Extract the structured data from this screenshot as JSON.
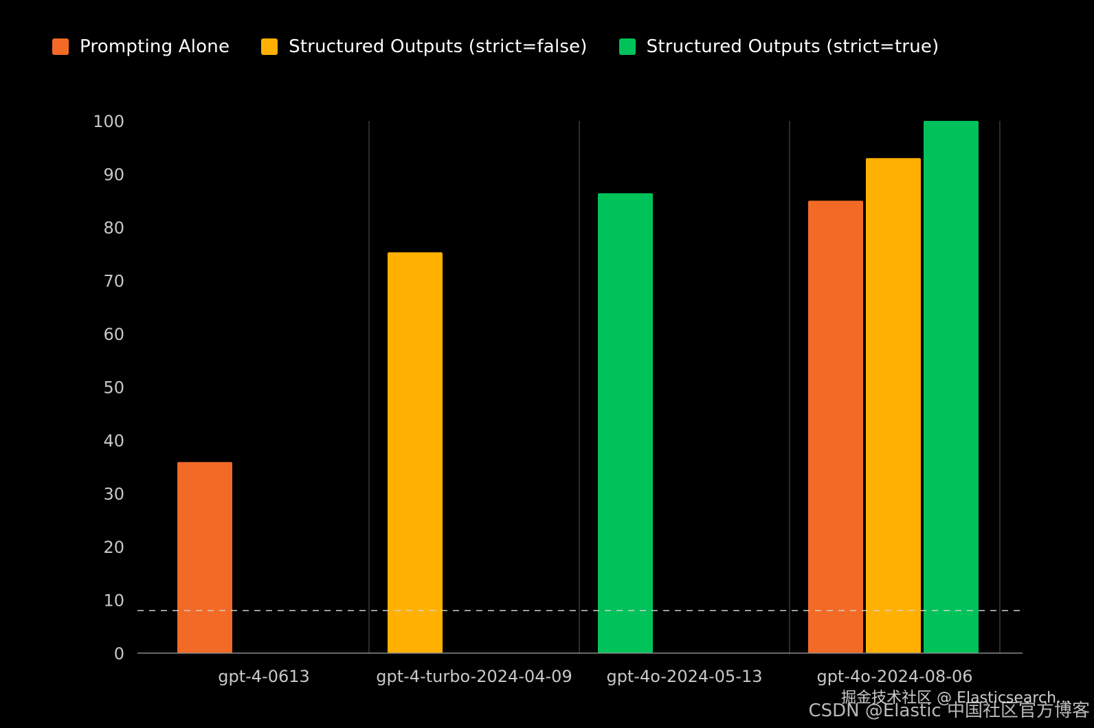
{
  "colors": {
    "background": "#000000",
    "prompting_alone": "#f26a25",
    "strict_false": "#ffb000",
    "strict_true": "#00c25a",
    "grid": "#3a3a3a",
    "baseline": "#8a8a8a",
    "reference_line": "#cfcfcf"
  },
  "chart_data": {
    "type": "bar",
    "title": "",
    "xlabel": "",
    "ylabel": "",
    "ylim": [
      0,
      100
    ],
    "yticks": [
      0,
      10,
      20,
      30,
      40,
      50,
      60,
      70,
      80,
      90,
      100
    ],
    "categories": [
      "gpt-4-0613",
      "gpt-4-turbo-2024-04-09",
      "gpt-4o-2024-05-13",
      "gpt-4o-2024-08-06"
    ],
    "series": [
      {
        "name": "Prompting Alone",
        "color": "#f26a25",
        "values": [
          35.9,
          null,
          null,
          85
        ]
      },
      {
        "name": "Structured Outputs (strict=false)",
        "color": "#ffb000",
        "values": [
          null,
          75.3,
          null,
          93
        ]
      },
      {
        "name": "Structured Outputs (strict=true)",
        "color": "#00c25a",
        "values": [
          null,
          null,
          86.4,
          100
        ]
      }
    ],
    "reference_line": {
      "value": 8,
      "style": "dashed"
    },
    "grid": "vertical separators between categories",
    "legend": "top-left"
  },
  "watermark": {
    "line1": "掘金技术社区 @ Elasticsearch...",
    "line2": "CSDN @Elastic 中国社区官方博客"
  }
}
